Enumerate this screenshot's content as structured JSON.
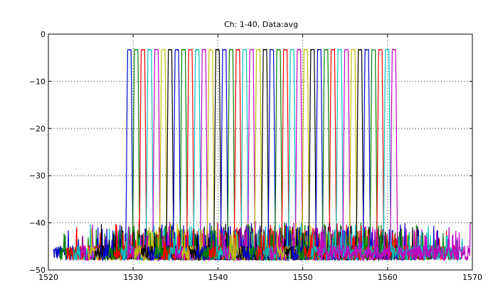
{
  "chart_data": {
    "type": "line",
    "title": "Ch: 1-40, Data:avg",
    "xlabel": "",
    "ylabel": "",
    "xlim": [
      1520,
      1570
    ],
    "ylim": [
      -50,
      0
    ],
    "xticks": [
      1520,
      1530,
      1540,
      1550,
      1560,
      1570
    ],
    "yticks": [
      0,
      -10,
      -20,
      -30,
      -40,
      -50
    ],
    "grid": "dotted",
    "legend": "none",
    "series_count": 40,
    "channel_start_nm": 1529.55,
    "channel_spacing_nm": 0.8,
    "channel_centers_nm": [
      1529.55,
      1530.35,
      1531.15,
      1531.95,
      1532.75,
      1533.55,
      1534.35,
      1535.15,
      1535.95,
      1536.75,
      1537.55,
      1538.35,
      1539.15,
      1539.95,
      1540.75,
      1541.55,
      1542.35,
      1543.15,
      1543.95,
      1544.75,
      1545.55,
      1546.35,
      1547.15,
      1547.95,
      1548.75,
      1549.55,
      1550.35,
      1551.15,
      1551.95,
      1552.75,
      1553.55,
      1554.35,
      1555.15,
      1555.95,
      1556.75,
      1557.55,
      1558.35,
      1559.15,
      1559.95,
      1560.75
    ],
    "peak_level_db": -3.3,
    "noise_floor_db": -47,
    "colors": [
      "#0000cc",
      "#008000",
      "#ff0000",
      "#00bfbf",
      "#bf00bf",
      "#bfbf00",
      "#000000"
    ]
  }
}
